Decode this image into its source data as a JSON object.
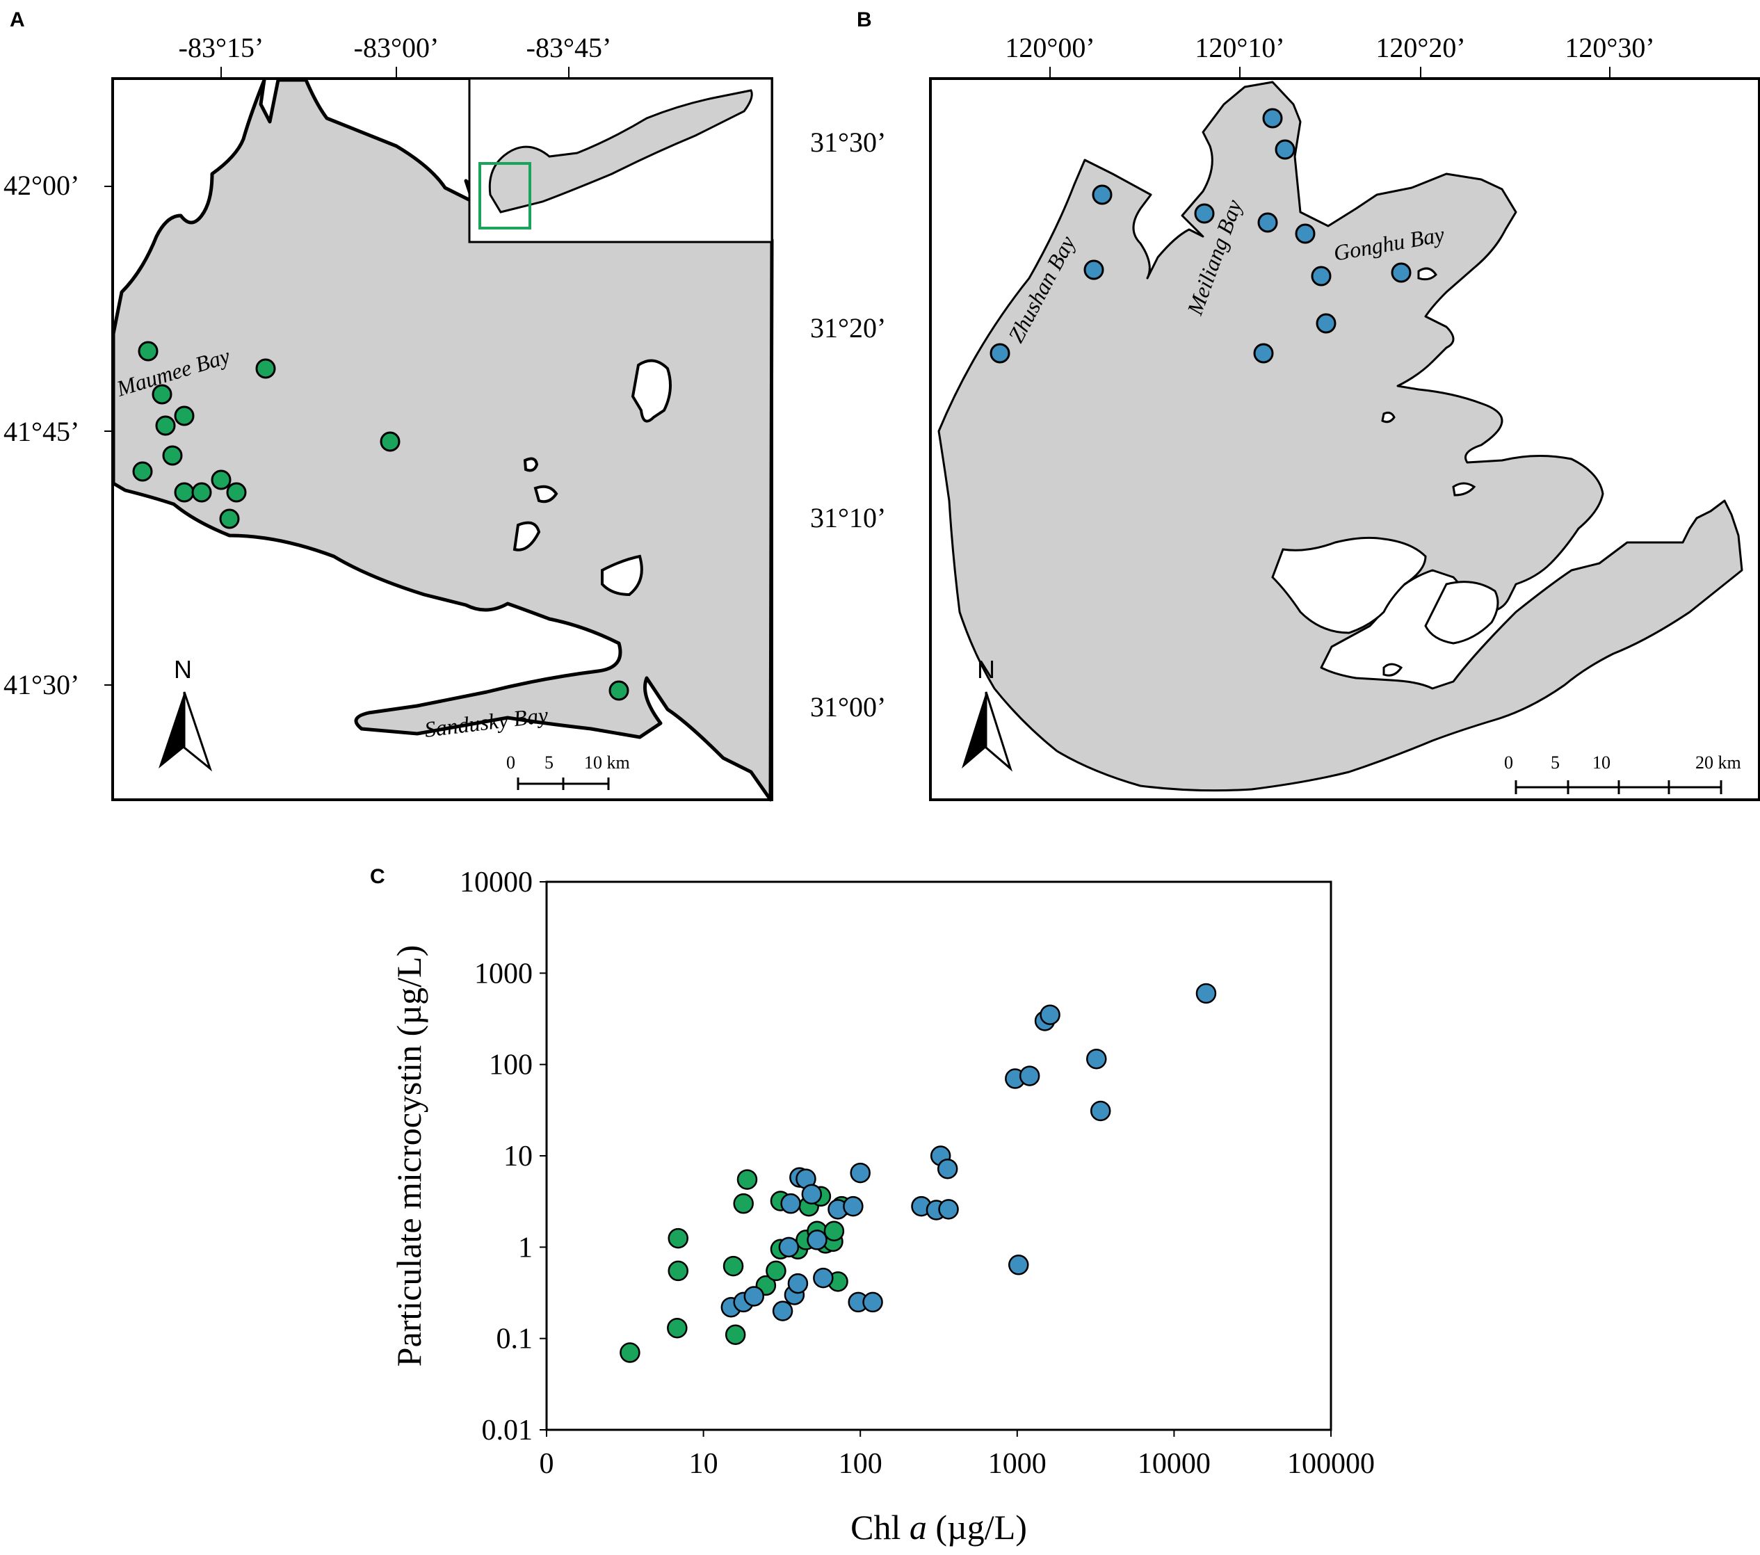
{
  "panel_a": {
    "label": "A",
    "lon_ticks": [
      "-83°15’",
      "-83°00’",
      "-83°45’"
    ],
    "lat_ticks": [
      "42°00’",
      "41°45’",
      "41°30’"
    ],
    "place_labels": [
      "Maumee Bay",
      "Sandusky Bay"
    ],
    "north": "N",
    "scale_ticks": [
      "0",
      "5",
      "10 km"
    ],
    "site_color": "#1aa35a",
    "inset_box_color": "#1aa35a"
  },
  "panel_b": {
    "label": "B",
    "lon_ticks": [
      "120°00’",
      "120°10’",
      "120°20’",
      "120°30’"
    ],
    "lat_ticks": [
      "31°30’",
      "31°20’",
      "31°10’",
      "31°00’"
    ],
    "place_labels": [
      "Zhushan Bay",
      "Meiliang Bay",
      "Gonghu Bay"
    ],
    "north": "N",
    "scale_ticks": [
      "0",
      "5",
      "10",
      "20 km"
    ],
    "site_color": "#3d8fbf"
  },
  "panel_c": {
    "label": "C"
  },
  "chart_data": {
    "type": "scatter",
    "xscale": "log",
    "yscale": "log",
    "xlabel_prefix": "Chl ",
    "xlabel_italic": "a",
    "xlabel_suffix": " (µg/L)",
    "ylabel": "Particulate microcystin (µg/L)",
    "xlim": [
      1,
      100000
    ],
    "ylim": [
      0.01,
      10000
    ],
    "x_tick_labels": [
      "0",
      "10",
      "100",
      "1000",
      "10000",
      "100000"
    ],
    "y_tick_labels": [
      "0.01",
      "0.1",
      "1",
      "10",
      "100",
      "1000",
      "10000"
    ],
    "series": [
      {
        "color": "#1aa35a",
        "points": [
          {
            "x": 3.4,
            "y": 0.07
          },
          {
            "x": 6.8,
            "y": 0.13
          },
          {
            "x": 6.9,
            "y": 0.55
          },
          {
            "x": 6.9,
            "y": 1.25
          },
          {
            "x": 15.5,
            "y": 0.62
          },
          {
            "x": 16,
            "y": 0.11
          },
          {
            "x": 18,
            "y": 3.0
          },
          {
            "x": 19,
            "y": 5.5
          },
          {
            "x": 25,
            "y": 0.38
          },
          {
            "x": 29,
            "y": 0.55
          },
          {
            "x": 31,
            "y": 0.95
          },
          {
            "x": 31,
            "y": 3.2
          },
          {
            "x": 40,
            "y": 0.95
          },
          {
            "x": 45,
            "y": 1.2
          },
          {
            "x": 47,
            "y": 2.8
          },
          {
            "x": 53,
            "y": 1.5
          },
          {
            "x": 56,
            "y": 3.6
          },
          {
            "x": 60,
            "y": 1.1
          },
          {
            "x": 67,
            "y": 1.15
          },
          {
            "x": 68,
            "y": 1.5
          },
          {
            "x": 72,
            "y": 0.42
          },
          {
            "x": 76,
            "y": 2.8
          }
        ]
      },
      {
        "color": "#3d8fbf",
        "points": [
          {
            "x": 15,
            "y": 0.22
          },
          {
            "x": 18,
            "y": 0.25
          },
          {
            "x": 21,
            "y": 0.29
          },
          {
            "x": 32,
            "y": 0.2
          },
          {
            "x": 35,
            "y": 1.0
          },
          {
            "x": 36,
            "y": 3.0
          },
          {
            "x": 38,
            "y": 0.3
          },
          {
            "x": 40,
            "y": 0.4
          },
          {
            "x": 41,
            "y": 5.8
          },
          {
            "x": 45,
            "y": 5.6
          },
          {
            "x": 49,
            "y": 3.8
          },
          {
            "x": 53,
            "y": 1.2
          },
          {
            "x": 58,
            "y": 0.46
          },
          {
            "x": 72,
            "y": 2.6
          },
          {
            "x": 90,
            "y": 2.8
          },
          {
            "x": 97,
            "y": 0.25
          },
          {
            "x": 100,
            "y": 6.5
          },
          {
            "x": 120,
            "y": 0.25
          },
          {
            "x": 245,
            "y": 2.8
          },
          {
            "x": 305,
            "y": 2.55
          },
          {
            "x": 325,
            "y": 10.0
          },
          {
            "x": 360,
            "y": 7.2
          },
          {
            "x": 365,
            "y": 2.6
          },
          {
            "x": 970,
            "y": 70
          },
          {
            "x": 1020,
            "y": 0.64
          },
          {
            "x": 1200,
            "y": 75
          },
          {
            "x": 1500,
            "y": 300
          },
          {
            "x": 1620,
            "y": 350
          },
          {
            "x": 3200,
            "y": 115
          },
          {
            "x": 3400,
            "y": 31
          },
          {
            "x": 16000,
            "y": 600
          }
        ]
      }
    ]
  }
}
